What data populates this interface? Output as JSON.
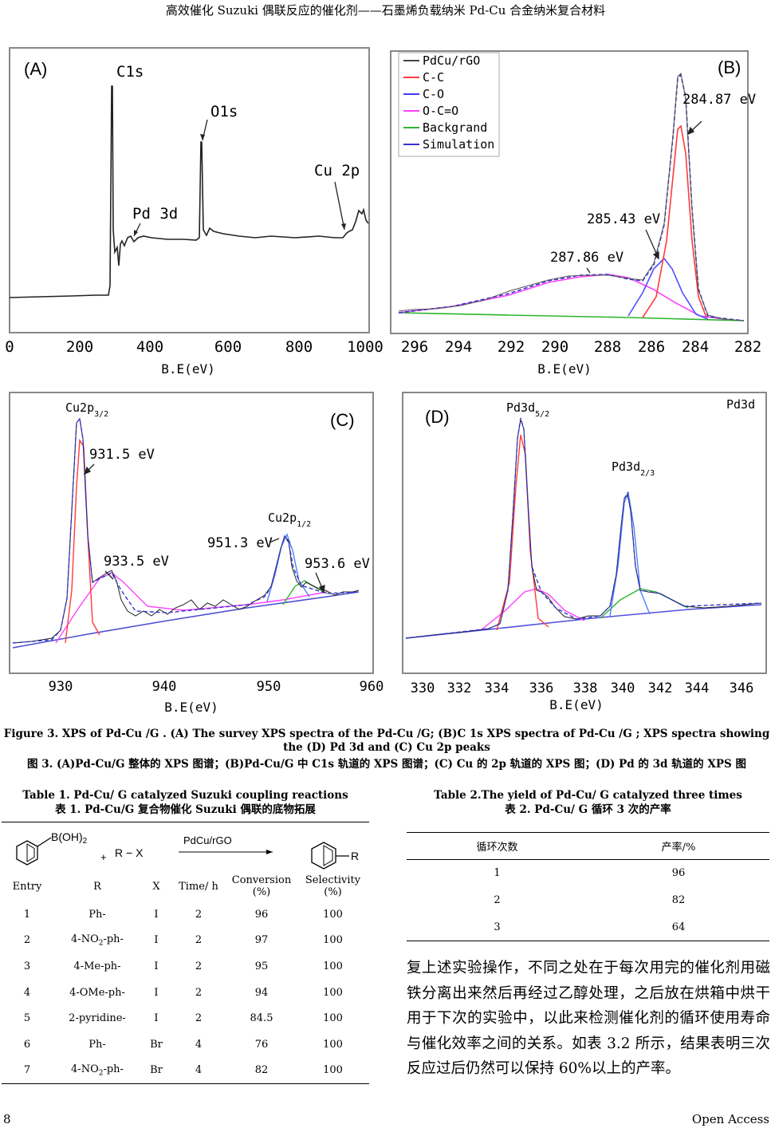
{
  "header": "高效催化 Suzuki 偶联反应的催化剂——石墨烯负载纳米 Pd-Cu 合金纳米复合材料",
  "panels": {
    "A": {
      "letter": "(A)",
      "labels": {
        "c1s": "C1s",
        "o1s": "O1s",
        "pd3d": "Pd 3d",
        "cu2p": "Cu 2p"
      },
      "xticks": [
        "0",
        "200",
        "400",
        "600",
        "800",
        "1000"
      ],
      "xlabel": "B.E(eV)"
    },
    "B": {
      "letter": "(B)",
      "legend": [
        {
          "label": "PdCu/rGO",
          "color": "#444444"
        },
        {
          "label": "C-C",
          "color": "#ff3b3b"
        },
        {
          "label": "C-O",
          "color": "#3b3bff"
        },
        {
          "label": "O-C=O",
          "color": "#ff40ff"
        },
        {
          "label": "Backgrand",
          "color": "#2fb52f"
        },
        {
          "label": "Simulation",
          "color": "#3535d0"
        }
      ],
      "peaks": {
        "p1": "284.87 eV",
        "p2": "285.43 eV",
        "p3": "287.86 eV"
      },
      "xticks": [
        "296",
        "294",
        "292",
        "290",
        "288",
        "286",
        "284",
        "282"
      ],
      "xlabel": "B.E(eV)"
    },
    "C": {
      "letter": "(C)",
      "labels": {
        "cu32": "Cu2p",
        "cu32sub": "3/2",
        "cu12": "Cu2p",
        "cu12sub": "1/2",
        "e1": "931.5 eV",
        "e2": "933.5 eV",
        "e3": "951.3 eV",
        "e4": "953.6 eV"
      },
      "xticks": [
        "930",
        "940",
        "950",
        "960"
      ],
      "xlabel": "B.E(eV)"
    },
    "D": {
      "letter": "(D)",
      "labels": {
        "pd52": "Pd3d",
        "pd52sub": "5/2",
        "pd32": "Pd3d",
        "pd32sub": "2/3",
        "top": "Pd3d"
      },
      "xticks": [
        "330",
        "332",
        "334",
        "336",
        "338",
        "340",
        "342",
        "344",
        "346"
      ],
      "xlabel": "B.E(eV)"
    }
  },
  "figure_caption_en": "Figure 3. XPS of Pd-Cu /G . (A) The survey XPS spectra of the Pd-Cu /G; (B)C 1s XPS spectra of Pd-Cu /G ; XPS spectra showing the (D) Pd 3d and (C) Cu 2p peaks",
  "figure_caption_cn": "图 3. (A)Pd-Cu/G 整体的 XPS 图谱；(B)Pd-Cu/G 中 C1s 轨道的 XPS 图谱；(C) Cu  的 2p 轨道的 XPS 图；(D) Pd  的 3d 轨道的 XPS 图",
  "table1": {
    "caption_en": "Table 1. Pd-Cu/ G catalyzed Suzuki coupling reactions",
    "caption_cn": "表 1. Pd-Cu/G 复合物催化 Suzuki 偶联的底物拓展",
    "scheme": {
      "boronic": "B(OH)",
      "sub2": "2",
      "plus": "+",
      "rx": "R − X",
      "catalyst": "PdCu/rGO",
      "product_r": "R"
    },
    "headers": {
      "entry": "Entry",
      "r": "R",
      "x": "X",
      "time": "Time/ h",
      "conv": "Conversion",
      "conv2": "(%)",
      "sel": "Selectivity",
      "sel2": "(%)"
    },
    "rows": [
      {
        "entry": "1",
        "r": "Ph-",
        "x": "I",
        "time": "2",
        "conv": "96",
        "sel": "100"
      },
      {
        "entry": "2",
        "r": "4-NO",
        "sub": "2",
        "r2": "-ph-",
        "x": "I",
        "time": "2",
        "conv": "97",
        "sel": "100"
      },
      {
        "entry": "3",
        "r": "4-Me-ph-",
        "x": "I",
        "time": "2",
        "conv": "95",
        "sel": "100"
      },
      {
        "entry": "4",
        "r": "4-OMe-ph-",
        "x": "I",
        "time": "2",
        "conv": "94",
        "sel": "100"
      },
      {
        "entry": "5",
        "r": "2-pyridine-",
        "x": "I",
        "time": "2",
        "conv": "84.5",
        "sel": "100"
      },
      {
        "entry": "6",
        "r": "Ph-",
        "x": "Br",
        "time": "4",
        "conv": "76",
        "sel": "100"
      },
      {
        "entry": "7",
        "r": "4-NO",
        "sub": "2",
        "r2": "-ph-",
        "x": "Br",
        "time": "4",
        "conv": "82",
        "sel": "100"
      }
    ]
  },
  "table2": {
    "caption_en": "Table 2.The yield of Pd-Cu/ G catalyzed three times",
    "caption_cn": "表 2. Pd-Cu/ G 循环 3 次的产率",
    "headers": {
      "cycle": "循环次数",
      "yield": "产率/%"
    },
    "rows": [
      {
        "cycle": "1",
        "yield": "96"
      },
      {
        "cycle": "2",
        "yield": "82"
      },
      {
        "cycle": "3",
        "yield": "64"
      }
    ]
  },
  "paragraph": "复上述实验操作，不同之处在于每次用完的催化剂用磁铁分离出来然后再经过乙醇处理，之后放在烘箱中烘干用于下次的实验中，以此来检测催化剂的循环使用寿命与催化效率之间的关系。如表 3.2 所示，结果表明三次反应过后仍然可以保持 60%以上的产率。",
  "footer": {
    "page": "8",
    "journal": "Open Access"
  }
}
